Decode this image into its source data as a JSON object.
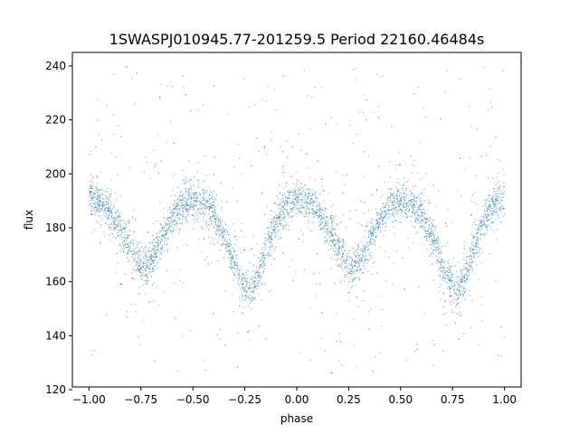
{
  "chart_data": {
    "type": "scatter",
    "title": "1SWASPJ010945.77-201259.5 Period 22160.46484s",
    "xlabel": "phase",
    "ylabel": "flux",
    "xlim": [
      -1.08,
      1.08
    ],
    "ylim": [
      121,
      245
    ],
    "x_ticks": [
      -1.0,
      -0.75,
      -0.5,
      -0.25,
      0.0,
      0.25,
      0.5,
      0.75,
      1.0
    ],
    "x_tick_labels": [
      "−1.00",
      "−0.75",
      "−0.50",
      "−0.25",
      "0.00",
      "0.25",
      "0.50",
      "0.75",
      "1.00"
    ],
    "y_ticks": [
      120,
      140,
      160,
      180,
      200,
      220,
      240
    ],
    "y_tick_labels": [
      "120",
      "140",
      "160",
      "180",
      "200",
      "220",
      "240"
    ],
    "grid": false,
    "legend": "none",
    "marker_color": "#4a90c4",
    "series": [
      {
        "phase_range": [
          -1.0,
          1.0
        ],
        "phase_folded_curve": {
          "phase": [
            0.0,
            0.05,
            0.1,
            0.15,
            0.2,
            0.25,
            0.27,
            0.3,
            0.35,
            0.4,
            0.45,
            0.5,
            0.55,
            0.6,
            0.65,
            0.7,
            0.75,
            0.77,
            0.8,
            0.85,
            0.9,
            0.95,
            1.0
          ],
          "flux": [
            191,
            190,
            186,
            180,
            172,
            166,
            165,
            168,
            176,
            184,
            189,
            190,
            189,
            185,
            177,
            166,
            158,
            156,
            160,
            172,
            183,
            189,
            191
          ]
        },
        "scatter_core_flux_width": 8,
        "outlier_range": [
          125,
          240
        ]
      }
    ]
  }
}
